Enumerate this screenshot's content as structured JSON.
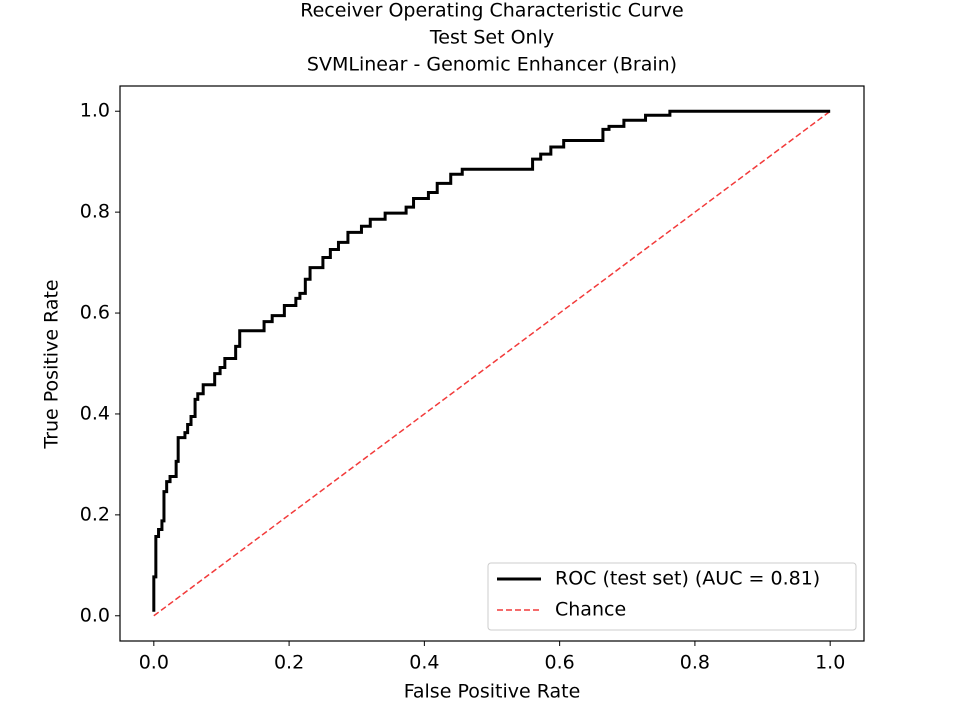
{
  "chart_data": {
    "type": "line",
    "title": [
      "Receiver Operating Characteristic Curve",
      "Test Set Only",
      "SVMLinear - Genomic Enhancer (Brain)"
    ],
    "xlabel": "False Positive Rate",
    "ylabel": "True Positive Rate",
    "xlim": [
      -0.05,
      1.05
    ],
    "ylim": [
      -0.05,
      1.05
    ],
    "xticks": [
      {
        "value": 0,
        "label": "0.0"
      },
      0.2,
      0.4,
      0.6,
      0.8,
      {
        "value": 1,
        "label": "1.0"
      }
    ],
    "yticks": [
      {
        "value": 0,
        "label": "0.0"
      },
      0.2,
      0.4,
      0.6,
      0.8,
      {
        "value": 1,
        "label": "1.0"
      }
    ],
    "legend": "lower right",
    "series": [
      {
        "name": "ROC (test set) (AUC = 0.81)",
        "color": "#000000",
        "style": "solid",
        "x": [
          0,
          0,
          0.003,
          0.003,
          0.007,
          0.007,
          0.012,
          0.012,
          0.015,
          0.015,
          0.019,
          0.019,
          0.024,
          0.024,
          0.033,
          0.033,
          0.036,
          0.036,
          0.046,
          0.046,
          0.05,
          0.05,
          0.055,
          0.055,
          0.061,
          0.061,
          0.065,
          0.065,
          0.073,
          0.073,
          0.09,
          0.09,
          0.098,
          0.098,
          0.105,
          0.105,
          0.121,
          0.121,
          0.127,
          0.127,
          0.163,
          0.163,
          0.175,
          0.175,
          0.193,
          0.193,
          0.21,
          0.21,
          0.216,
          0.216,
          0.224,
          0.224,
          0.231,
          0.231,
          0.25,
          0.25,
          0.261,
          0.261,
          0.273,
          0.273,
          0.287,
          0.287,
          0.307,
          0.307,
          0.32,
          0.32,
          0.342,
          0.342,
          0.373,
          0.373,
          0.384,
          0.384,
          0.406,
          0.406,
          0.419,
          0.419,
          0.439,
          0.439,
          0.456,
          0.456,
          0.56,
          0.56,
          0.572,
          0.572,
          0.587,
          0.587,
          0.606,
          0.606,
          0.664,
          0.664,
          0.673,
          0.673,
          0.695,
          0.695,
          0.727,
          0.727,
          0.763,
          0.763,
          1
        ],
        "values": [
          0.008,
          0.077,
          0.077,
          0.157,
          0.157,
          0.171,
          0.171,
          0.188,
          0.188,
          0.246,
          0.246,
          0.266,
          0.266,
          0.276,
          0.276,
          0.306,
          0.306,
          0.353,
          0.353,
          0.363,
          0.363,
          0.379,
          0.379,
          0.395,
          0.395,
          0.429,
          0.429,
          0.44,
          0.44,
          0.458,
          0.458,
          0.48,
          0.48,
          0.492,
          0.492,
          0.51,
          0.51,
          0.534,
          0.534,
          0.565,
          0.565,
          0.583,
          0.583,
          0.595,
          0.595,
          0.615,
          0.615,
          0.629,
          0.629,
          0.639,
          0.639,
          0.667,
          0.667,
          0.69,
          0.69,
          0.71,
          0.71,
          0.726,
          0.726,
          0.74,
          0.74,
          0.76,
          0.76,
          0.772,
          0.772,
          0.786,
          0.786,
          0.798,
          0.798,
          0.81,
          0.81,
          0.827,
          0.827,
          0.839,
          0.839,
          0.857,
          0.857,
          0.875,
          0.875,
          0.885,
          0.885,
          0.905,
          0.905,
          0.915,
          0.915,
          0.929,
          0.929,
          0.942,
          0.942,
          0.964,
          0.964,
          0.97,
          0.97,
          0.982,
          0.982,
          0.992,
          0.992,
          1,
          1
        ]
      },
      {
        "name": "Chance",
        "color": "#f23a3a",
        "style": "dashed",
        "x": [
          0,
          1
        ],
        "values": [
          0,
          1
        ]
      }
    ]
  }
}
